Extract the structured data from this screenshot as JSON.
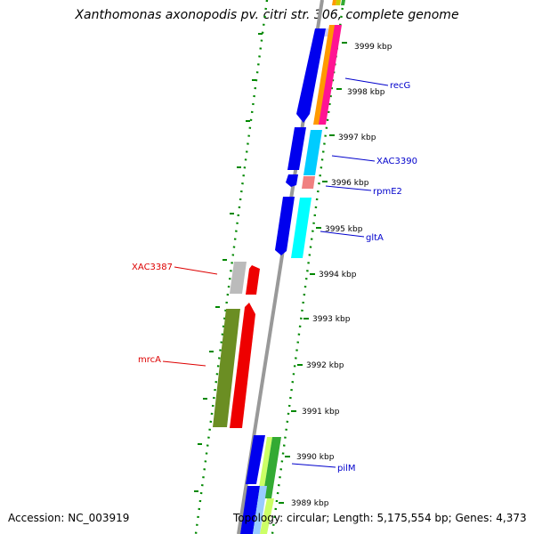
{
  "title": "Xanthomonas axonopodis pv. citri str. 306, complete genome",
  "footer": {
    "accession": "Accession: NC_003919",
    "summary": "Topology: circular; Length: 5,175,554 bp; Genes: 4,373"
  },
  "scale_unit": "kbp",
  "ticks": [
    3999,
    3998,
    3997,
    3996,
    3995,
    3994,
    3993,
    3992,
    3991,
    3990,
    3989
  ],
  "gene_labels": [
    {
      "name": "recG",
      "strand": "forward",
      "color": "#0000cc"
    },
    {
      "name": "XAC3390",
      "strand": "forward",
      "color": "#0000cc"
    },
    {
      "name": "rpmE2",
      "strand": "forward",
      "color": "#0000cc"
    },
    {
      "name": "gltA",
      "strand": "forward",
      "color": "#0000cc"
    },
    {
      "name": "pilM",
      "strand": "forward",
      "color": "#0000cc"
    },
    {
      "name": "XAC3387",
      "strand": "reverse",
      "color": "#dd0000"
    },
    {
      "name": "mrcA",
      "strand": "reverse",
      "color": "#dd0000"
    }
  ],
  "colors": {
    "backbone": "#999999",
    "grid_dots": "#008800",
    "forward_label": "#0000cc",
    "reverse_label": "#dd0000"
  }
}
